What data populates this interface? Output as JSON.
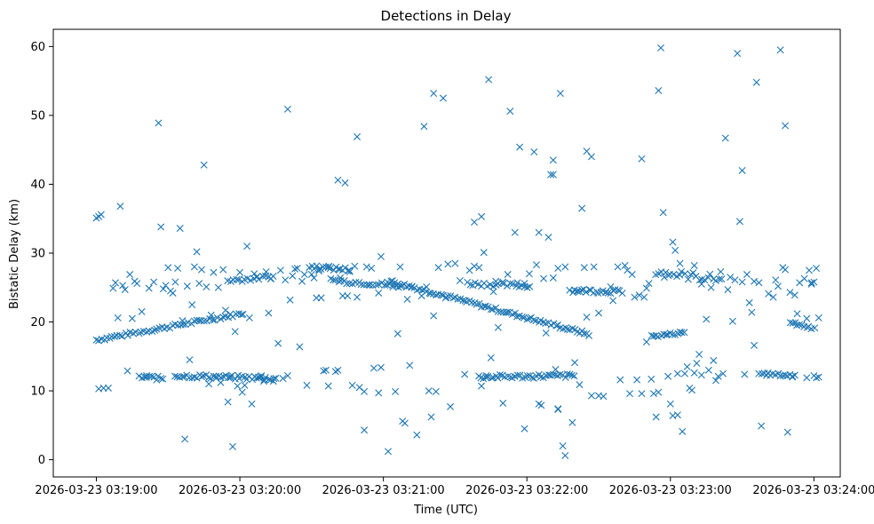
{
  "chart_data": {
    "type": "scatter",
    "title": "Detections in Delay",
    "xlabel": "Time (UTC)",
    "ylabel": "Bistatic Delay (km)",
    "marker": "x",
    "color": "#1f77b4",
    "x_unit": "seconds after 2026-03-23 03:19:00",
    "xlim": [
      -18,
      311
    ],
    "ylim": [
      -2.5,
      62.5
    ],
    "x_ticks": [
      {
        "value": 0,
        "label": "2026-03-23 03:19:00"
      },
      {
        "value": 60,
        "label": "2026-03-23 03:20:00"
      },
      {
        "value": 120,
        "label": "2026-03-23 03:21:00"
      },
      {
        "value": 180,
        "label": "2026-03-23 03:22:00"
      },
      {
        "value": 240,
        "label": "2026-03-23 03:23:00"
      },
      {
        "value": 300,
        "label": "2026-03-23 03:24:00"
      }
    ],
    "y_ticks": [
      {
        "value": 0,
        "label": "0"
      },
      {
        "value": 10,
        "label": "10"
      },
      {
        "value": 20,
        "label": "20"
      },
      {
        "value": 30,
        "label": "30"
      },
      {
        "value": 40,
        "label": "40"
      },
      {
        "value": 50,
        "label": "50"
      },
      {
        "value": 60,
        "label": "60"
      }
    ],
    "tracks": [
      {
        "name": "rising-track",
        "x_start": 0,
        "x_end": 62,
        "y_start": 17.4,
        "y_end": 21.3,
        "step": 1.1,
        "jitter": 0.25
      },
      {
        "name": "descending-track",
        "x_start": 122,
        "x_end": 206,
        "y_start": 26.0,
        "y_end": 18.2,
        "step": 1.0,
        "jitter": 0.25
      },
      {
        "name": "track-18",
        "x_start": 232,
        "x_end": 246,
        "y_start": 17.9,
        "y_end": 18.5,
        "step": 1.0,
        "jitter": 0.2
      },
      {
        "name": "track-26-a",
        "x_start": 55,
        "x_end": 75,
        "y_start": 26.0,
        "y_end": 26.6,
        "step": 1.2,
        "jitter": 0.3
      },
      {
        "name": "track-26-b",
        "x_start": 100,
        "x_end": 128,
        "y_start": 26.0,
        "y_end": 25.2,
        "step": 1.2,
        "jitter": 0.3
      },
      {
        "name": "track-25-c",
        "x_start": 155,
        "x_end": 182,
        "y_start": 25.6,
        "y_end": 25.2,
        "step": 1.2,
        "jitter": 0.3
      },
      {
        "name": "track-24-d",
        "x_start": 198,
        "x_end": 220,
        "y_start": 24.6,
        "y_end": 24.4,
        "step": 1.0,
        "jitter": 0.3
      },
      {
        "name": "track-19-e",
        "x_start": 290,
        "x_end": 300,
        "y_start": 19.9,
        "y_end": 19.0,
        "step": 1.0,
        "jitter": 0.2
      },
      {
        "name": "track-12-a",
        "x_start": 18,
        "x_end": 28,
        "y_start": 12.0,
        "y_end": 11.8,
        "step": 1.0,
        "jitter": 0.3
      },
      {
        "name": "track-12-b",
        "x_start": 33,
        "x_end": 75,
        "y_start": 12.2,
        "y_end": 11.8,
        "step": 1.0,
        "jitter": 0.3
      },
      {
        "name": "track-12-c",
        "x_start": 160,
        "x_end": 200,
        "y_start": 12.0,
        "y_end": 12.2,
        "step": 1.0,
        "jitter": 0.3
      },
      {
        "name": "track-12-d",
        "x_start": 277,
        "x_end": 292,
        "y_start": 12.5,
        "y_end": 12.2,
        "step": 1.0,
        "jitter": 0.2
      },
      {
        "name": "track-27-e",
        "x_start": 234,
        "x_end": 262,
        "y_start": 27.2,
        "y_end": 26.2,
        "step": 1.2,
        "jitter": 0.6
      },
      {
        "name": "track-28-f",
        "x_start": 90,
        "x_end": 106,
        "y_start": 28.0,
        "y_end": 27.6,
        "step": 1.0,
        "jitter": 0.3
      }
    ],
    "points": [
      [
        0,
        35.1
      ],
      [
        1,
        35.3
      ],
      [
        2,
        35.6
      ],
      [
        10,
        36.8
      ],
      [
        26,
        48.9
      ],
      [
        27,
        33.8
      ],
      [
        35,
        33.6
      ],
      [
        37,
        3.0
      ],
      [
        42,
        30.2
      ],
      [
        45,
        42.8
      ],
      [
        57,
        1.9
      ],
      [
        63,
        31.0
      ],
      [
        64,
        20.6
      ],
      [
        65,
        8.1
      ],
      [
        67,
        26.5
      ],
      [
        72,
        21.3
      ],
      [
        76,
        16.9
      ],
      [
        80,
        50.9
      ],
      [
        81,
        23.2
      ],
      [
        85,
        16.4
      ],
      [
        88,
        10.8
      ],
      [
        95,
        12.9
      ],
      [
        97,
        10.7
      ],
      [
        101,
        40.6
      ],
      [
        101,
        13.0
      ],
      [
        104,
        40.2
      ],
      [
        105,
        23.8
      ],
      [
        107,
        10.8
      ],
      [
        109,
        46.9
      ],
      [
        110,
        10.5
      ],
      [
        112,
        4.3
      ],
      [
        112,
        9.9
      ],
      [
        114,
        25.4
      ],
      [
        116,
        13.3
      ],
      [
        119,
        13.4
      ],
      [
        119,
        29.5
      ],
      [
        118,
        24.2
      ],
      [
        118,
        9.7
      ],
      [
        122,
        1.2
      ],
      [
        124,
        25.1
      ],
      [
        125,
        9.9
      ],
      [
        126,
        18.3
      ],
      [
        128,
        5.6
      ],
      [
        129,
        5.3
      ],
      [
        131,
        13.7
      ],
      [
        134,
        3.6
      ],
      [
        137,
        48.4
      ],
      [
        138,
        25.1
      ],
      [
        139,
        10.0
      ],
      [
        140,
        6.2
      ],
      [
        141,
        53.2
      ],
      [
        141,
        20.9
      ],
      [
        142,
        9.9
      ],
      [
        145,
        52.5
      ],
      [
        146,
        23.5
      ],
      [
        148,
        7.7
      ],
      [
        150,
        28.5
      ],
      [
        154,
        12.4
      ],
      [
        158,
        34.5
      ],
      [
        158,
        28.1
      ],
      [
        161,
        35.3
      ],
      [
        161,
        10.7
      ],
      [
        162,
        30.1
      ],
      [
        163,
        12.2
      ],
      [
        164,
        55.2
      ],
      [
        165,
        14.8
      ],
      [
        166,
        24.4
      ],
      [
        168,
        19.2
      ],
      [
        170,
        8.2
      ],
      [
        173,
        50.6
      ],
      [
        175,
        33.0
      ],
      [
        177,
        45.4
      ],
      [
        179,
        4.5
      ],
      [
        183,
        44.7
      ],
      [
        184,
        28.3
      ],
      [
        185,
        33.0
      ],
      [
        185,
        8.1
      ],
      [
        186,
        7.9
      ],
      [
        188,
        18.4
      ],
      [
        189,
        32.3
      ],
      [
        190,
        41.4
      ],
      [
        191,
        43.5
      ],
      [
        191,
        41.4
      ],
      [
        192,
        13.1
      ],
      [
        193,
        7.4
      ],
      [
        193,
        7.3
      ],
      [
        194,
        53.2
      ],
      [
        195,
        2.0
      ],
      [
        196,
        0.6
      ],
      [
        199,
        5.4
      ],
      [
        200,
        14.1
      ],
      [
        202,
        10.9
      ],
      [
        203,
        36.5
      ],
      [
        205,
        44.8
      ],
      [
        205,
        20.7
      ],
      [
        207,
        44.0
      ],
      [
        207,
        9.3
      ],
      [
        210,
        21.3
      ],
      [
        210,
        9.3
      ],
      [
        212,
        9.2
      ],
      [
        216,
        23.1
      ],
      [
        218,
        28.0
      ],
      [
        219,
        11.6
      ],
      [
        223,
        9.6
      ],
      [
        226,
        11.6
      ],
      [
        228,
        9.6
      ],
      [
        228,
        43.7
      ],
      [
        229,
        23.6
      ],
      [
        230,
        17.1
      ],
      [
        232,
        11.7
      ],
      [
        233,
        9.6
      ],
      [
        234,
        6.2
      ],
      [
        235,
        53.6
      ],
      [
        235,
        9.8
      ],
      [
        236,
        59.8
      ],
      [
        237,
        35.9
      ],
      [
        238,
        27.2
      ],
      [
        239,
        12.1
      ],
      [
        240,
        8.1
      ],
      [
        241,
        6.4
      ],
      [
        241,
        31.6
      ],
      [
        242,
        30.4
      ],
      [
        243,
        6.5
      ],
      [
        243,
        12.5
      ],
      [
        245,
        4.1
      ],
      [
        246,
        12.5
      ],
      [
        247,
        13.5
      ],
      [
        248,
        10.4
      ],
      [
        249,
        10.1
      ],
      [
        250,
        12.6
      ],
      [
        251,
        14.0
      ],
      [
        252,
        15.3
      ],
      [
        253,
        12.3
      ],
      [
        255,
        20.4
      ],
      [
        256,
        13.0
      ],
      [
        258,
        14.4
      ],
      [
        259,
        11.5
      ],
      [
        260,
        12.1
      ],
      [
        262,
        12.5
      ],
      [
        263,
        46.7
      ],
      [
        266,
        20.1
      ],
      [
        268,
        59.0
      ],
      [
        269,
        34.6
      ],
      [
        270,
        42.0
      ],
      [
        271,
        12.4
      ],
      [
        272,
        26.9
      ],
      [
        273,
        22.8
      ],
      [
        274,
        21.4
      ],
      [
        275,
        16.6
      ],
      [
        276,
        54.8
      ],
      [
        278,
        4.9
      ],
      [
        286,
        59.5
      ],
      [
        287,
        27.9
      ],
      [
        288,
        48.5
      ],
      [
        289,
        4.0
      ],
      [
        291,
        12.0
      ],
      [
        293,
        21.2
      ],
      [
        296,
        26.3
      ],
      [
        297,
        20.5
      ],
      [
        297,
        11.9
      ],
      [
        1,
        10.3
      ],
      [
        3,
        10.4
      ],
      [
        5,
        10.4
      ],
      [
        13,
        12.9
      ],
      [
        21,
        12.2
      ],
      [
        36,
        20.2
      ],
      [
        38,
        25.2
      ],
      [
        40,
        22.5
      ],
      [
        43,
        25.6
      ],
      [
        51,
        25.0
      ],
      [
        54,
        21.7
      ],
      [
        55,
        8.4
      ],
      [
        58,
        18.6
      ],
      [
        60,
        27.2
      ],
      [
        62,
        10.8
      ],
      [
        68,
        11.9
      ],
      [
        80,
        12.2
      ],
      [
        83,
        27.7
      ],
      [
        90,
        26.9
      ],
      [
        94,
        23.5
      ],
      [
        97,
        27.9
      ],
      [
        98,
        26.3
      ],
      [
        103,
        23.8
      ],
      [
        108,
        28.1
      ],
      [
        113,
        28.0
      ],
      [
        115,
        27.8
      ],
      [
        127,
        28.0
      ],
      [
        130,
        23.3
      ],
      [
        132,
        25.2
      ],
      [
        136,
        23.8
      ],
      [
        143,
        27.9
      ],
      [
        147,
        28.4
      ],
      [
        152,
        26.0
      ],
      [
        156,
        27.5
      ],
      [
        160,
        27.9
      ],
      [
        167,
        25.9
      ],
      [
        170,
        25.8
      ],
      [
        172,
        26.9
      ],
      [
        176,
        25.7
      ],
      [
        179,
        25.6
      ],
      [
        181,
        27.0
      ],
      [
        187,
        26.3
      ],
      [
        191,
        26.4
      ],
      [
        193,
        27.8
      ],
      [
        196,
        28.0
      ],
      [
        201,
        24.5
      ],
      [
        204,
        27.9
      ],
      [
        208,
        28.0
      ],
      [
        213,
        24.3
      ],
      [
        215,
        25.1
      ],
      [
        221,
        28.2
      ],
      [
        222,
        27.5
      ],
      [
        224,
        26.9
      ],
      [
        225,
        23.6
      ],
      [
        227,
        23.9
      ],
      [
        230,
        24.9
      ],
      [
        231,
        25.6
      ],
      [
        244,
        28.5
      ],
      [
        250,
        28.2
      ],
      [
        253,
        25.5
      ],
      [
        257,
        25.0
      ],
      [
        261,
        27.3
      ],
      [
        264,
        24.7
      ],
      [
        265,
        26.5
      ],
      [
        267,
        26.1
      ],
      [
        270,
        25.8
      ],
      [
        275,
        25.9
      ],
      [
        277,
        25.7
      ],
      [
        281,
        24.1
      ],
      [
        283,
        23.6
      ],
      [
        284,
        26.1
      ],
      [
        285,
        25.2
      ],
      [
        288,
        27.6
      ],
      [
        290,
        24.3
      ],
      [
        292,
        23.9
      ],
      [
        294,
        25.7
      ],
      [
        298,
        27.5
      ],
      [
        299,
        25.5
      ],
      [
        300,
        25.8
      ],
      [
        301,
        27.8
      ],
      [
        302,
        20.6
      ],
      [
        302,
        12.0
      ],
      [
        301,
        11.9
      ],
      [
        300,
        12.2
      ],
      [
        299,
        25.7
      ],
      [
        14,
        26.9
      ],
      [
        17,
        25.6
      ],
      [
        19,
        21.5
      ],
      [
        22,
        24.9
      ],
      [
        24,
        25.8
      ],
      [
        29,
        25.3
      ],
      [
        31,
        24.5
      ],
      [
        33,
        25.8
      ],
      [
        7,
        24.9
      ],
      [
        8,
        25.7
      ],
      [
        9,
        20.6
      ],
      [
        11,
        25.3
      ],
      [
        12,
        24.7
      ],
      [
        15,
        20.5
      ],
      [
        16,
        25.9
      ],
      [
        28,
        24.8
      ],
      [
        30,
        27.9
      ],
      [
        32,
        24.2
      ],
      [
        34,
        27.8
      ],
      [
        39,
        14.5
      ],
      [
        41,
        28.0
      ],
      [
        44,
        27.6
      ],
      [
        46,
        25.1
      ],
      [
        47,
        11.0
      ],
      [
        48,
        21.0
      ],
      [
        49,
        27.2
      ],
      [
        50,
        12.1
      ],
      [
        52,
        11.2
      ],
      [
        53,
        27.6
      ],
      [
        56,
        11.9
      ],
      [
        59,
        10.7
      ],
      [
        61,
        9.8
      ],
      [
        66,
        27.0
      ],
      [
        69,
        12.2
      ],
      [
        70,
        11.4
      ],
      [
        71,
        27.3
      ],
      [
        73,
        26.3
      ],
      [
        74,
        11.4
      ],
      [
        77,
        27.5
      ],
      [
        78,
        11.8
      ],
      [
        79,
        26.1
      ],
      [
        82,
        26.7
      ],
      [
        84,
        27.8
      ],
      [
        86,
        25.9
      ],
      [
        87,
        26.9
      ],
      [
        89,
        27.9
      ],
      [
        91,
        26.4
      ],
      [
        92,
        23.5
      ],
      [
        93,
        27.4
      ],
      [
        96,
        13.0
      ],
      [
        99,
        26.1
      ],
      [
        100,
        12.8
      ],
      [
        102,
        26.4
      ],
      [
        106,
        27.3
      ],
      [
        109,
        23.6
      ]
    ]
  }
}
